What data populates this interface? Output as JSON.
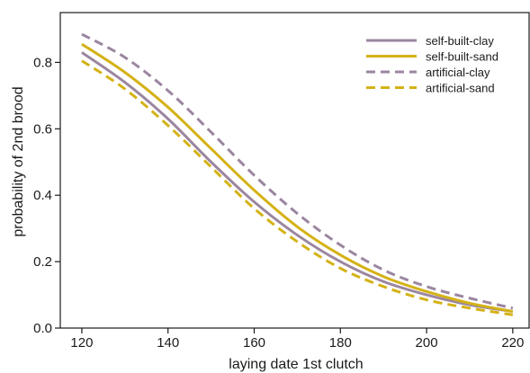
{
  "chart_data": {
    "type": "line",
    "xlabel": "laying date 1st clutch",
    "ylabel": "probability of 2nd brood",
    "xlim": [
      115,
      224
    ],
    "ylim": [
      0,
      0.95
    ],
    "xticks": [
      120,
      140,
      160,
      180,
      200,
      220
    ],
    "yticks": [
      0.0,
      0.2,
      0.4,
      0.6,
      0.8
    ],
    "grid": false,
    "legend_position": "top-right",
    "x": [
      120,
      130,
      140,
      150,
      160,
      170,
      180,
      190,
      200,
      210,
      220
    ],
    "series": [
      {
        "name": "self-built-clay",
        "color": "#9b86a0",
        "dash": "solid",
        "values": [
          0.83,
          0.74,
          0.63,
          0.5,
          0.38,
          0.28,
          0.2,
          0.14,
          0.1,
          0.07,
          0.05
        ]
      },
      {
        "name": "self-built-sand",
        "color": "#d4b216",
        "dash": "solid",
        "values": [
          0.855,
          0.77,
          0.665,
          0.54,
          0.415,
          0.305,
          0.22,
          0.155,
          0.11,
          0.075,
          0.05
        ]
      },
      {
        "name": "artificial-clay",
        "color": "#9b86a0",
        "dash": "dashed",
        "values": [
          0.885,
          0.815,
          0.715,
          0.59,
          0.46,
          0.345,
          0.25,
          0.175,
          0.125,
          0.09,
          0.06
        ]
      },
      {
        "name": "artificial-sand",
        "color": "#d4b216",
        "dash": "dashed",
        "values": [
          0.805,
          0.72,
          0.61,
          0.485,
          0.36,
          0.26,
          0.18,
          0.125,
          0.085,
          0.06,
          0.04
        ]
      }
    ]
  }
}
